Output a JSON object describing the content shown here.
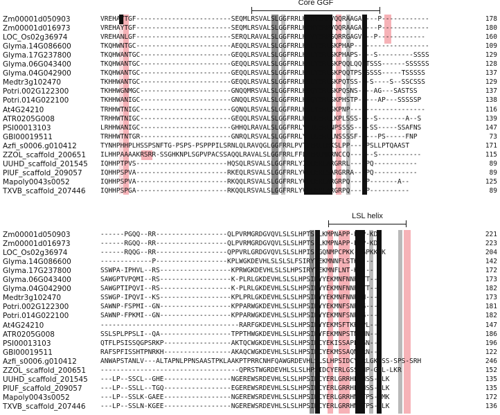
{
  "motifs": {
    "top": "Core GGF",
    "bottom": "LSL helix"
  },
  "block1": [
    {
      "name": "Zm00001d050903",
      "seq": "VREHAYTGF------------------------SEQMLRSVALSLGGFRRLHEMYERPVQQRAAGA----P------------",
      "num": "178"
    },
    {
      "name": "Zm00001d016973",
      "seq": "VREHAYTGF------------------------SEQMLRSVALSLGGFRRLHEMYERPVQQRAAGA----P------------",
      "num": "180"
    },
    {
      "name": "LOC_Os02g36974",
      "seq": "VREHANLGF------------------------SERQLRAVALSLGGFRRLHAVYERPGQRRGAGV---P------------",
      "num": "160"
    },
    {
      "name": "Glyma.14G086600",
      "seq": "TKQHWNTGC------------------------AEQQLRSVALSLGGFRRLHALYERLSKPHAP-------------------",
      "num": "109"
    },
    {
      "name": "Glyma.17G237800",
      "seq": "TKQHWANTGC-----------------------GEQQLRSVALSLGGFRRLHALYERLSKPHAPS----S---------SSSS",
      "num": "129"
    },
    {
      "name": "Glyma.06G043400",
      "seq": "TKQHWANTGC-----------------------GEQQLRSVALSLGGFRRLHALYERLSKPQQLQQLTSSS------SSSSSS",
      "num": "128"
    },
    {
      "name": "Glyma.04G042900",
      "seq": "TKQHWANTGC-----------------------GEQQLRSVALSLGGFRRLHALYERLSKPQQTPSSSSSS-----TSSSSS",
      "num": "137"
    },
    {
      "name": "Medtr3g102470",
      "seq": "TKHHWANTGC-----------------------GEQQLRSVALSLGGFRRLHSLYERLSKPQTSS---S----S--SSCSSS",
      "num": "129"
    },
    {
      "name": "Potri.002G122300",
      "seq": "TKHHWGNMGC-----------------------GNQQMRSVALSLGGFRRLHSQYERLSKPQSNS----AG---SASTSS",
      "num": "137"
    },
    {
      "name": "Potri.014G022100",
      "seq": "TKHHWANIGC-----------------------GNQQLRSVALSLGGFRRLHSQYERLSKPHSTP-----AP---SSSSSP",
      "num": "138"
    },
    {
      "name": "At4G24210",
      "seq": "TRHHWTNIGC-----------------------GQNQLRSVALSLGGFRRLHSLYERLSKPNP-------------------",
      "num": "116"
    },
    {
      "name": "ATR0205G008",
      "seq": "TRHHWTNIGC-----------------------GEQQLRSVALSLGGFRRLHSLCERLLKPLSSS----S-------A--S",
      "num": "139"
    },
    {
      "name": "PSI00013103",
      "seq": "LRHHWANIGC-----------------------GHHQLRAVALSLGGFRRLYAICERLNPSSSS----SS-----SSAFNS",
      "num": "147"
    },
    {
      "name": "GBI00019511",
      "seq": "TRHHWTNTGR-----------------------GNRQLRSVALSLGGFRRLYSLCERLLNSSSSF-----PS-----FNP",
      "num": "73"
    },
    {
      "name": "Azfi_s0006.g010412",
      "seq": "TYNHPHHPLHSSPSNFTG-PSPS-PSPPPILSRNLQLRAVQGLGGFRRLPVTYERLLHKSLPP----PSLLPTQAAST",
      "num": "171"
    },
    {
      "name": "ZZOL_scaffold_200651",
      "seq": "ILHHPAAAAKRSRR-SSGHKNPLSGPVPACSSAQQLRAVALSLGGFRRLFFLHERLMKRNCCQ------S-----------",
      "num": "115"
    },
    {
      "name": "UUHD_scaffold_201545",
      "seq": "IQHHPTPVS-----------------------HQSQLRSVALSLGGFRRLYIQCERLARGRRL----PQ-----------",
      "num": "89"
    },
    {
      "name": "PIUF_scaffold_209057",
      "seq": "IQHHPSPVA-----------------------RKEQLRSVALSLGGFRRLYVLCERLSARGRRA---PQ-----------",
      "num": "89"
    },
    {
      "name": "Mapoly0043s0052",
      "seq": "IQHHPSPVA-----------------------RKQQLRSVALSLGGFRRLYVLCERLARGRPQ----P-------A--",
      "num": "125"
    },
    {
      "name": "TXVB_scaffold_207446",
      "seq": "IQHHPSPGA-----------------------RKQQLRSVALSLGGFRRLYVLCERLARGRPQ----P----------",
      "num": "89"
    }
  ],
  "block2": [
    {
      "name": "Zm00001d050903",
      "seq": "------PGQQ--RR------------------QLPVRMGRDGVQVLSLSLHPTSFLKMPNAPP-PPP-KDK",
      "num": "221"
    },
    {
      "name": "Zm00001d016973",
      "seq": "------RGQQ--RR------------------QLPVRMGRDGVQVLSLSLHPTSFLKMPNAPP-PPP-KDK",
      "num": "223"
    },
    {
      "name": "LOC_Os02g36974",
      "seq": "------RQQG--RR------------------QPPVRLGRDGVQVLSLSLHPISFGQNMPCPKK-DGPKKDK",
      "num": "204"
    },
    {
      "name": "Glyma.14G086600",
      "seq": "-------------P------------------KPLWGKDEVHLSLSLSLFSIRYYEKMNNFLSTKK---",
      "num": "142"
    },
    {
      "name": "Glyma.17G237800",
      "seq": "SSWPA-IPHVL--RS------------------KPRWGKDEVHLSLSLHPSIRYYEKMNFLNT-KK---",
      "num": "172"
    },
    {
      "name": "Glyma.06G043400",
      "seq": "SAWGPTVPQMI--RS------------------K-PLRLGKDEVHLSLSLHPSIRYYEKMNFNNR-TT---",
      "num": "173"
    },
    {
      "name": "Glyma.04G042900",
      "seq": "SAWGPTIPQVI--RS------------------K-PLRLGKDEVHLSLSLHPSIRYYEKMNFNNR-TT---",
      "num": "182"
    },
    {
      "name": "Medtr3g102470",
      "seq": "SSWGP-IPQVI--KS------------------KPLPRLGKDEVHLSLSLHPSIRYYEKMNFNNR-N---",
      "num": "173"
    },
    {
      "name": "Potri.002G122300",
      "seq": "SAWNP-FSPMI--GN------------------KPPARWGKDEVHLSLSLHPSIRYYEKMNFSNR-G---",
      "num": "181"
    },
    {
      "name": "Potri.014G022100",
      "seq": "SAWNP-FPKMI--GN------------------KPPARWGKDEVHLSLSLHPSIRYYEKMNFSNR-G---",
      "num": "182"
    },
    {
      "name": "At4G24210",
      "seq": "-----------------------------------RARFGKDEVHLSLSLHPSIRYYEKMSFTKR-PL---",
      "num": "147"
    },
    {
      "name": "ATR0205G008",
      "seq": "SSLSPLPPSLI--QA------------------TPPTHWGKDEVHLSLSLHPSIRYFEKMNPSTNRNN---",
      "num": "186"
    },
    {
      "name": "PSI00013103",
      "seq": "QTFLPSISSQGPSRKP-----------------AKTQCWGKDEVHLSLSLHPSIHCYEKISSAPL-GN---",
      "num": "196"
    },
    {
      "name": "GBI00019511",
      "seq": "RAFSPFISSHTPNRKH-----------------AKAQCWGKDEVHLSLSLHPSIHCYEKMSSAQM-RN---",
      "num": "122"
    },
    {
      "name": "Azfi_s0006.g010412",
      "seq": "ANWAPSTANLV---ALTAPNLPPNSAASTPKLAAKPTPRRCNHFQAWGRDEVHLSLSLHPSIDCYERLGKISS-SPS-SRH",
      "num": "246"
    },
    {
      "name": "ZZOL_scaffold_200651",
      "seq": "-----------------------------------QPRSTWGRDEVHLSLSLHPSIDCYERLGSSSNP-GPL-LKR",
      "num": "152"
    },
    {
      "name": "UUHD_scaffold_201545",
      "seq": "---LP--SSCL--GHE-----------------NGEREWSRDEVHLSLSLHPSIDCYERLGRRHL-NSS-SLK",
      "num": "135"
    },
    {
      "name": "PIUF_scaffold_209057",
      "seq": "---LP--SSLL--TGQ-----------------EGEREWSRDEVHLSLSLHPSIDCYERLGRRHL-NSS-SLK",
      "num": "135"
    },
    {
      "name": "Mapoly0043s0052",
      "seq": "---LP--SSLK-GAEE-----------------NGEREWSRDEVHLSLSLHPSIDCYERLGRRHM-TPS-SMK",
      "num": "172"
    },
    {
      "name": "TXVB_scaffold_207446",
      "seq": "---LP--SSLN-KGEE-----------------NGEREWSRDEVHLSLSLHPSIDCYERLGRRHM-TPS-SLK",
      "num": "136"
    }
  ],
  "colors": {
    "pink": "#f4a4aa",
    "black": "#111111",
    "gray": "#8a8a8a"
  }
}
